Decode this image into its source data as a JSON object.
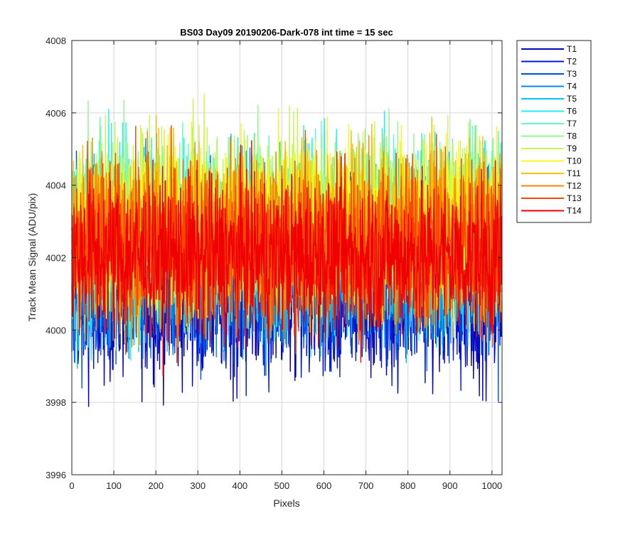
{
  "chart_data": {
    "type": "line",
    "title": "BS03 Day09 20190206-Dark-078 int time = 15 sec",
    "xlabel": "Pixels",
    "ylabel": "Track Mean Signal (ADU/pix)",
    "xlim": [
      0,
      1024
    ],
    "ylim": [
      3996,
      4008
    ],
    "xticks": [
      "0",
      "100",
      "200",
      "300",
      "400",
      "500",
      "600",
      "700",
      "800",
      "900",
      "1000"
    ],
    "yticks": [
      "3996",
      "3998",
      "4000",
      "4002",
      "4004",
      "4006",
      "4008"
    ],
    "grid": true,
    "legend_position": "outside-top-right",
    "n_points_per_series": 1024,
    "series": [
      {
        "name": "T1",
        "color": "#0000bf",
        "mean": 4001.0,
        "noise": 1.2
      },
      {
        "name": "T2",
        "color": "#0018d8",
        "mean": 4001.3,
        "noise": 1.2
      },
      {
        "name": "T3",
        "color": "#0050e8",
        "mean": 4001.6,
        "noise": 1.2
      },
      {
        "name": "T4",
        "color": "#0088f0",
        "mean": 4001.9,
        "noise": 1.2
      },
      {
        "name": "T5",
        "color": "#00c0f8",
        "mean": 4002.2,
        "noise": 1.2
      },
      {
        "name": "T6",
        "color": "#20f0f0",
        "mean": 4002.6,
        "noise": 1.3
      },
      {
        "name": "T7",
        "color": "#60f8c8",
        "mean": 4002.9,
        "noise": 1.2
      },
      {
        "name": "T8",
        "color": "#90f890",
        "mean": 4003.0,
        "noise": 1.2
      },
      {
        "name": "T9",
        "color": "#c8f850",
        "mean": 4003.0,
        "noise": 1.2
      },
      {
        "name": "T10",
        "color": "#f8f820",
        "mean": 4002.9,
        "noise": 1.2
      },
      {
        "name": "T11",
        "color": "#f8c000",
        "mean": 4002.7,
        "noise": 1.2
      },
      {
        "name": "T12",
        "color": "#f88800",
        "mean": 4002.5,
        "noise": 1.2
      },
      {
        "name": "T13",
        "color": "#f84800",
        "mean": 4002.3,
        "noise": 1.2
      },
      {
        "name": "T14",
        "color": "#f00000",
        "mean": 4002.0,
        "noise": 1.1
      }
    ]
  }
}
